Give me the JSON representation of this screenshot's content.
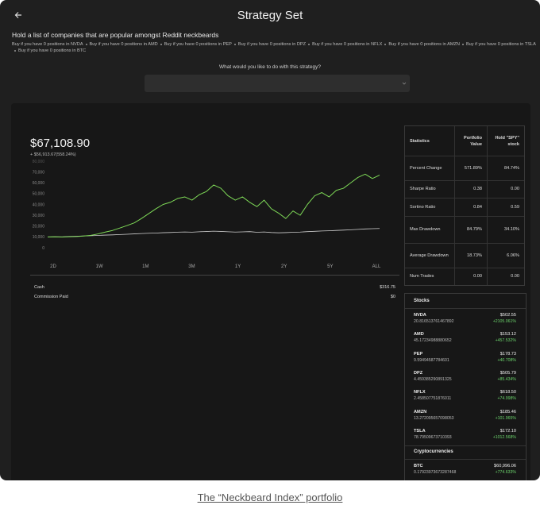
{
  "header": {
    "title": "Strategy Set"
  },
  "description": "Hold a list of companies that are popular amongst Reddit neckbeards",
  "rules": [
    "Buy if you have 0 positions in NVDA",
    "Buy if you have 0 positions in AMD",
    "Buy if you have 0 positions in PEP",
    "Buy if you have 0 positions in DPZ",
    "Buy if you have 0 positions in NFLX",
    "Buy if you have 0 positions in AMZN",
    "Buy if you have 0 positions in TSLA",
    "Buy if you have 0 positions in BTC"
  ],
  "prompt": "What would you like to do with this strategy?",
  "chart_data": {
    "type": "line",
    "current_value": "$67,108.90",
    "change": "+ $56,913.67(558.24%)",
    "periods": [
      "2D",
      "1W",
      "1M",
      "3M",
      "1Y",
      "2Y",
      "5Y",
      "ALL"
    ],
    "ylim": [
      0,
      80000
    ],
    "yticks": [
      0,
      {
        "value": 10000,
        "label": "10,000"
      },
      {
        "value": 20000,
        "label": "20,000"
      },
      {
        "value": 30000,
        "label": "30,000"
      },
      {
        "value": 40000,
        "label": "40,000"
      },
      {
        "value": 50000,
        "label": "50,000"
      },
      {
        "value": 60000,
        "label": "60,000"
      },
      {
        "value": 70000,
        "label": "70,000"
      },
      {
        "value": 80000,
        "label": "80,000"
      }
    ],
    "grid": false,
    "series": [
      {
        "color": "#7ed957",
        "values": [
          10000,
          10100,
          9900,
          10200,
          10400,
          10800,
          11500,
          12800,
          14500,
          16000,
          18200,
          20500,
          23000,
          27000,
          31500,
          36000,
          40000,
          42000,
          45500,
          47000,
          44000,
          49000,
          52000,
          58000,
          55000,
          48000,
          44000,
          47000,
          42000,
          38000,
          44000,
          36000,
          32000,
          27000,
          34000,
          30000,
          40000,
          48000,
          51000,
          47000,
          53000,
          55000,
          60000,
          65000,
          68000,
          64000,
          67108.9
        ]
      },
      {
        "color": "#cfcfcf",
        "values": [
          10000,
          10200,
          10100,
          10400,
          10600,
          10900,
          11100,
          11400,
          11700,
          11900,
          12200,
          12500,
          12800,
          13100,
          13400,
          13600,
          13900,
          14100,
          14400,
          14600,
          14400,
          14800,
          15000,
          15300,
          15100,
          14800,
          14500,
          14700,
          14900,
          14300,
          14600,
          14100,
          13800,
          14000,
          14300,
          14500,
          14900,
          15200,
          15500,
          15700,
          16000,
          16300,
          16600,
          17000,
          17400,
          17600,
          17800
        ]
      }
    ]
  },
  "account": {
    "rows": [
      [
        "Cash",
        "$316.75"
      ],
      [
        "Commission Paid",
        "$0"
      ]
    ]
  },
  "statistics": {
    "header": [
      "Statistics",
      "Portfolio Value",
      "Hold \"SPY\" stock"
    ],
    "rows": [
      [
        "Percent Change",
        "571.89%",
        "84.74%"
      ],
      [
        "Sharpe Ratio",
        "0.38",
        "0.00"
      ],
      [
        "Sortino Ratio",
        "0.84",
        "0.59"
      ],
      [
        "Max Drawdown",
        "84.79%",
        "34.10%"
      ],
      [
        "Average Drawdown",
        "18.73%",
        "6.06%"
      ],
      [
        "Num Trades",
        "0.00",
        "0.00"
      ]
    ]
  },
  "holdings": {
    "stocks_title": "Stocks",
    "stocks": [
      {
        "symbol": "NVDA",
        "quantity": "20.816513761467892",
        "price": "$502.55",
        "change": "+2105.061%"
      },
      {
        "symbol": "AMD",
        "quantity": "45.17234988880652",
        "price": "$153.12",
        "change": "+457.532%"
      },
      {
        "symbol": "PEP",
        "quantity": "9.59494587784601",
        "price": "$178.73",
        "change": "+40.708%"
      },
      {
        "symbol": "DPZ",
        "quantity": "4.459385290891325",
        "price": "$505.79",
        "change": "+85.434%"
      },
      {
        "symbol": "NFLX",
        "quantity": "2.458507751876011",
        "price": "$618.50",
        "change": "+74.998%"
      },
      {
        "symbol": "AMZN",
        "quantity": "13.272095657098053",
        "price": "$185.46",
        "change": "+101.965%"
      },
      {
        "symbol": "TSLA",
        "quantity": "78.79509673710393",
        "price": "$172.10",
        "change": "+1012.568%"
      }
    ],
    "crypto_title": "Cryptocurrencies",
    "crypto": [
      {
        "symbol": "BTC",
        "quantity": "0.17923973673287468",
        "price": "$60,996.06",
        "change": "+774.633%"
      }
    ]
  },
  "caption": "The “Neckbeard Index” portfolio"
}
